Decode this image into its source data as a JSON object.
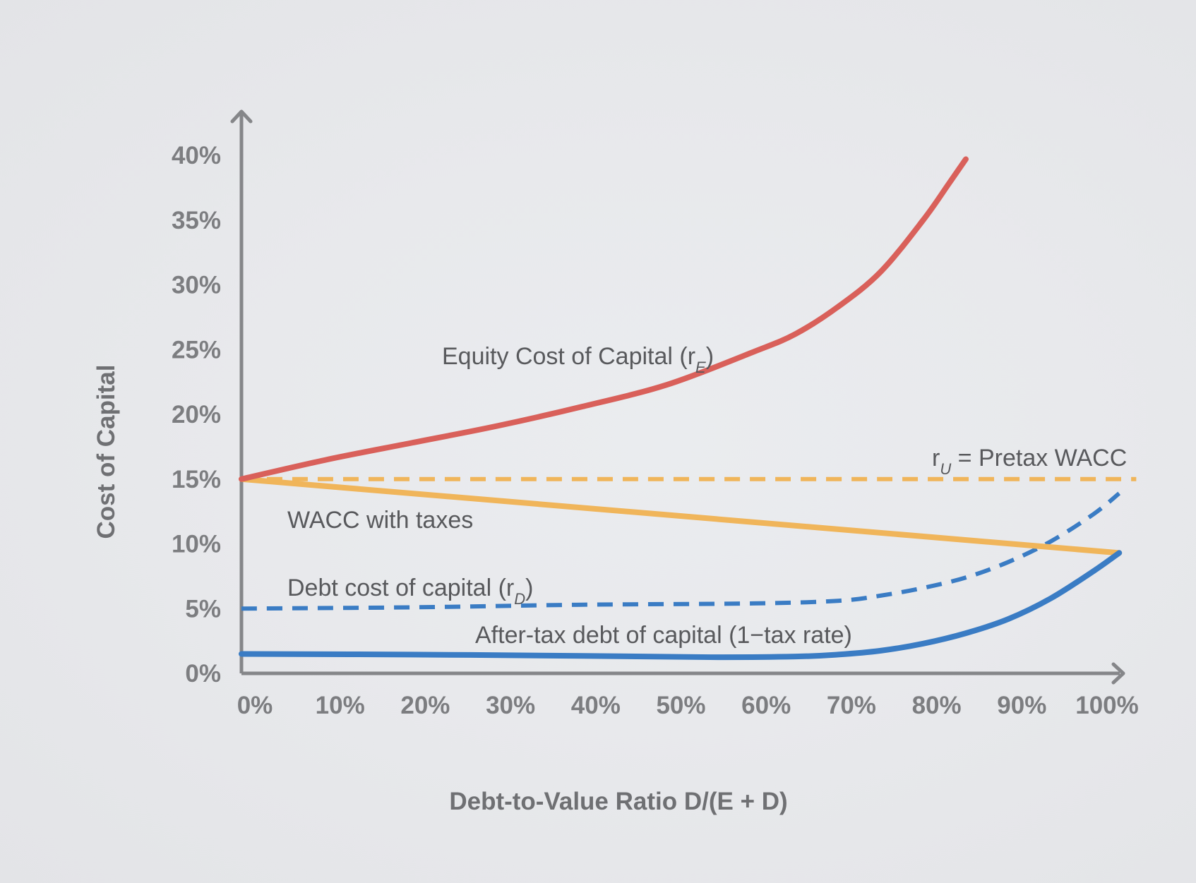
{
  "chart_data": {
    "type": "line",
    "title": "",
    "xlabel": "Debt-to-Value Ratio D/(E + D)",
    "ylabel": "Cost of Capital",
    "xlim": [
      0,
      100
    ],
    "ylim": [
      0,
      40
    ],
    "x_ticks": [
      "0%",
      "10%",
      "20%",
      "30%",
      "40%",
      "50%",
      "60%",
      "70%",
      "80%",
      "90%",
      "100%"
    ],
    "y_ticks": [
      "0%",
      "5%",
      "10%",
      "15%",
      "20%",
      "25%",
      "30%",
      "35%",
      "40%"
    ],
    "grid": false,
    "legend": "none",
    "series": [
      {
        "name": "Equity Cost of Capital (rE)",
        "label_main": "Equity Cost of Capital (r",
        "label_sub": "E",
        "label_end": ")",
        "style": "solid",
        "color": "#d9605a",
        "x": [
          0,
          10,
          20,
          30,
          40,
          50,
          60,
          65,
          70,
          75,
          80,
          83,
          85
        ],
        "y": [
          15,
          16.5,
          17.8,
          19.1,
          20.6,
          22.3,
          24.8,
          26.2,
          28.3,
          31.0,
          35.0,
          37.8,
          39.7
        ]
      },
      {
        "name": "rU = Pretax WACC",
        "label_main": "r",
        "label_sub": "U",
        "label_end": " = Pretax WACC",
        "style": "dashed",
        "color": "#f0b55a",
        "x": [
          0,
          105
        ],
        "y": [
          15,
          15
        ]
      },
      {
        "name": "WACC with taxes",
        "label_main": "WACC with taxes",
        "label_sub": "",
        "label_end": "",
        "style": "solid",
        "color": "#f0b55a",
        "x": [
          0,
          103
        ],
        "y": [
          15,
          9.3
        ]
      },
      {
        "name": "Debt cost of capital (rD)",
        "label_main": "Debt cost of capital (r",
        "label_sub": "D",
        "label_end": ")",
        "style": "dashed",
        "color": "#3a7cc4",
        "x": [
          0,
          20,
          40,
          60,
          70,
          75,
          80,
          85,
          90,
          95,
          100,
          103
        ],
        "y": [
          5,
          5.1,
          5.3,
          5.4,
          5.6,
          6.0,
          6.6,
          7.4,
          8.6,
          10.2,
          12.3,
          13.9
        ]
      },
      {
        "name": "After-tax debt of capital (1−tax rate)",
        "label_main": "After-tax debt of capital (1−tax rate)",
        "label_sub": "",
        "label_end": "",
        "style": "solid",
        "color": "#3a7cc4",
        "x": [
          0,
          20,
          40,
          55,
          65,
          70,
          75,
          80,
          85,
          90,
          95,
          100,
          103
        ],
        "y": [
          1.5,
          1.45,
          1.35,
          1.25,
          1.3,
          1.45,
          1.75,
          2.3,
          3.1,
          4.2,
          5.8,
          7.9,
          9.3
        ]
      }
    ]
  }
}
